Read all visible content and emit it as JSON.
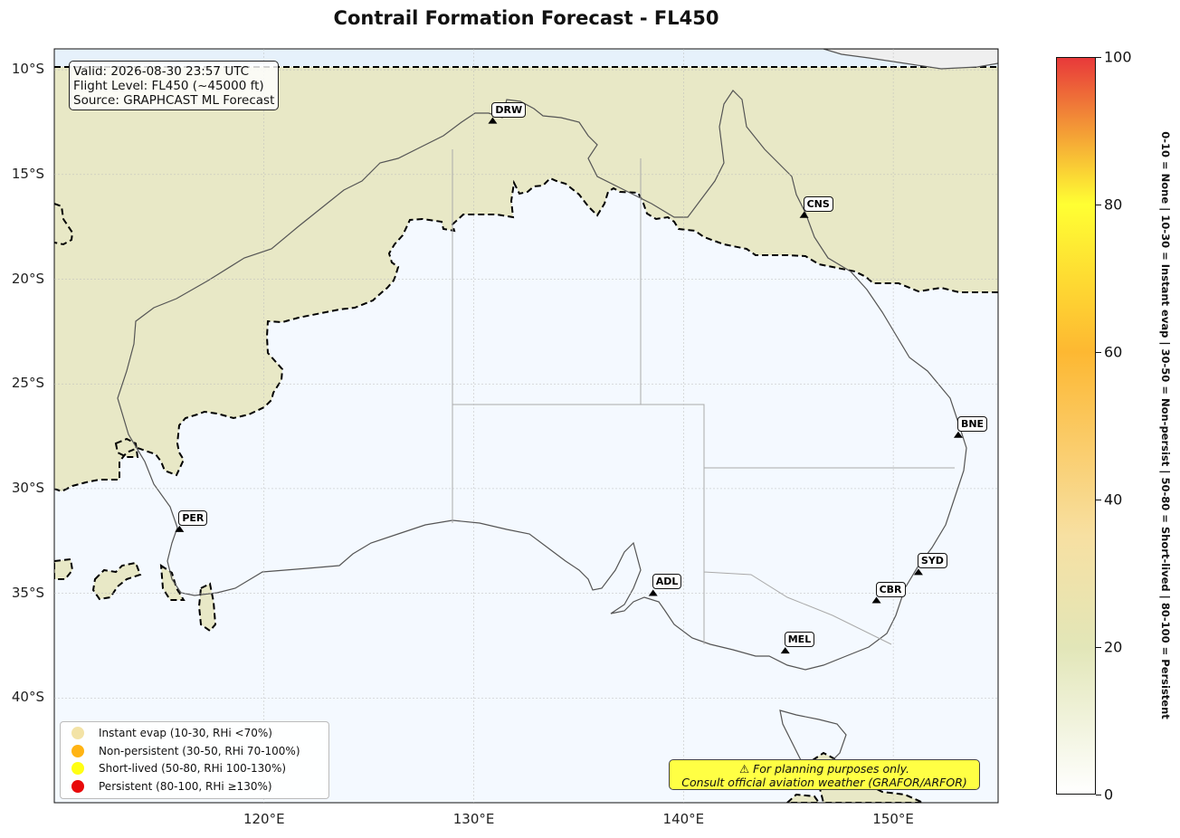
{
  "title": "Contrail Formation Forecast - FL450",
  "info": {
    "valid": "Valid: 2026-08-30 23:57 UTC",
    "flight_level": "Flight Level: FL450 (~45000 ft)",
    "source": "Source: GRAPHCAST ML Forecast"
  },
  "map": {
    "extent": {
      "lon_min": 110,
      "lon_max": 155,
      "lat_min": -45,
      "lat_max": -9
    },
    "lat_ticks": [
      -10,
      -15,
      -20,
      -25,
      -30,
      -35,
      -40
    ],
    "lat_labels": [
      "10°S",
      "15°S",
      "20°S",
      "25°S",
      "30°S",
      "35°S",
      "40°S"
    ],
    "lon_ticks": [
      120,
      130,
      140,
      150
    ],
    "lon_labels": [
      "120°E",
      "130°E",
      "140°E",
      "150°E"
    ]
  },
  "airports": [
    {
      "code": "DRW",
      "lon": 130.9,
      "lat": -12.4
    },
    {
      "code": "CNS",
      "lon": 145.75,
      "lat": -16.9
    },
    {
      "code": "BNE",
      "lon": 153.1,
      "lat": -27.4
    },
    {
      "code": "PER",
      "lon": 115.97,
      "lat": -31.9
    },
    {
      "code": "SYD",
      "lon": 151.2,
      "lat": -33.95
    },
    {
      "code": "CBR",
      "lon": 149.2,
      "lat": -35.3
    },
    {
      "code": "ADL",
      "lon": 138.55,
      "lat": -34.95
    },
    {
      "code": "MEL",
      "lon": 144.85,
      "lat": -37.7
    }
  ],
  "legend": [
    {
      "label": "Instant evap (10-30, RHi <70%)",
      "color": "#f3e3a6"
    },
    {
      "label": "Non-persistent (30-50, RHi 70-100%)",
      "color": "#ffb414"
    },
    {
      "label": "Short-lived (50-80, RHi 100-130%)",
      "color": "#ffff14"
    },
    {
      "label": "Persistent (80-100, RHi ≥130%)",
      "color": "#e80a0a"
    }
  ],
  "disclaimer": {
    "line1": "⚠ For planning purposes only.",
    "line2": "Consult official aviation weather (GRAFOR/ARFOR)"
  },
  "colorbar": {
    "min": 0,
    "max": 100,
    "ticks": [
      0,
      20,
      40,
      60,
      80,
      100
    ],
    "tick_labels": [
      "0",
      "20",
      "40",
      "60",
      "80",
      "100"
    ],
    "stops": [
      {
        "value": 0,
        "color": "#ffffff"
      },
      {
        "value": 20,
        "color": "#e2e6b8"
      },
      {
        "value": 35,
        "color": "#f7e0a2"
      },
      {
        "value": 60,
        "color": "#fdb832"
      },
      {
        "value": 80,
        "color": "#ffff33"
      },
      {
        "value": 100,
        "color": "#e8383a"
      }
    ],
    "scale_text": "0-10 = None  |  10-30 = Instant evap  |  30-50 = Non-persist  |  50-80 = Short-lived  |  80-100 = Persistent"
  },
  "colors": {
    "ocean": "#f4f9ff",
    "contrail_zone": "#e6e6c2",
    "land": "#f9f9f9",
    "boundary": "#000000"
  }
}
